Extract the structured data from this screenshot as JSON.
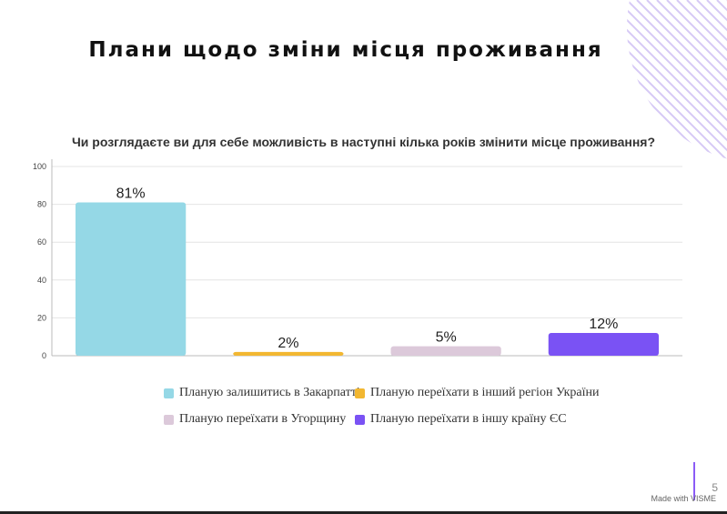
{
  "slide_title": "Плани щодо зміни місця проживання",
  "watermark": "Made with VISME",
  "page_number": "5",
  "colors": {
    "stay": "#95d8e6",
    "other_region": "#f2b731",
    "hungary": "#dcc9da",
    "eu": "#7a52f4",
    "deco_stripes": "#d6c9f5",
    "accent_line": "#8b5cf6"
  },
  "chart_data": {
    "type": "bar",
    "title": "Чи розглядаєте ви для себе можливість в наступні кілька років змінити місце проживання?",
    "categories": [
      "Планую залишитись в Закарпатті",
      "Планую переїхати в інший регіон України",
      "Планую переїхати в Угорщину",
      "Планую переїхати в іншу країну ЄС"
    ],
    "values": [
      81,
      2,
      5,
      12
    ],
    "data_labels": [
      "81%",
      "2%",
      "5%",
      "12%"
    ],
    "ylim": [
      0,
      100
    ],
    "yticks": [
      "0",
      "20",
      "40",
      "60",
      "80",
      "100"
    ],
    "grid": true,
    "legend_position": "bottom"
  },
  "legend": [
    {
      "label": "Планую залишитись в Закарпатті",
      "color_key": "stay"
    },
    {
      "label": "Планую переїхати в інший регіон України",
      "color_key": "other_region"
    },
    {
      "label": "Планую переїхати в Угорщину",
      "color_key": "hungary"
    },
    {
      "label": "Планую переїхати в іншу країну ЄС",
      "color_key": "eu"
    }
  ]
}
